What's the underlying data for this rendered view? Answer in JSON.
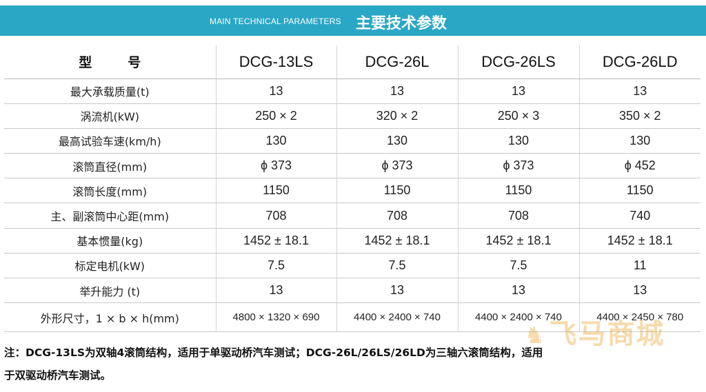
{
  "banner": {
    "subtitle": "MAIN TECHNICAL PARAMETERS",
    "title": "主要技术参数"
  },
  "table": {
    "header_label_left": "型",
    "header_label_right": "号",
    "models": [
      "DCG-13LS",
      "DCG-26L",
      "DCG-26LS",
      "DCG-26LD"
    ],
    "rows": [
      {
        "label": "最大承载质量(t)",
        "values": [
          "13",
          "13",
          "13",
          "13"
        ]
      },
      {
        "label": "涡流机(kW)",
        "values": [
          "250 × 2",
          "320 × 2",
          "250 × 3",
          "350 × 2"
        ]
      },
      {
        "label": "最高试验车速(km/h)",
        "values": [
          "130",
          "130",
          "130",
          "130"
        ]
      },
      {
        "label": "滚筒直径(mm)",
        "values": [
          "ϕ 373",
          "ϕ 373",
          "ϕ 373",
          "ϕ 452"
        ]
      },
      {
        "label": "滚筒长度(mm)",
        "values": [
          "1150",
          "1150",
          "1150",
          "1150"
        ]
      },
      {
        "label": "主、副滚筒中心距(mm)",
        "values": [
          "708",
          "708",
          "708",
          "740"
        ]
      },
      {
        "label": "基本惯量(kg)",
        "values": [
          "1452 ± 18.1",
          "1452 ± 18.1",
          "1452 ± 18.1",
          "1452 ± 18.1"
        ]
      },
      {
        "label": "标定电机(kW)",
        "values": [
          "7.5",
          "7.5",
          "7.5",
          "11"
        ]
      },
      {
        "label": "举升能力 (t)",
        "values": [
          "13",
          "13",
          "13",
          "13"
        ]
      },
      {
        "label": "外形尺寸，1 × b × h(mm)",
        "values": [
          "4800 × 1320 × 690",
          "4400 × 2400 × 740",
          "4400 × 2400 × 740",
          "4400 × 2450 × 780"
        ]
      }
    ]
  },
  "note": {
    "line1": "注：DCG-13LS为双轴4滚筒结构，适用于单驱动桥汽车测试；DCG-26L/26LS/26LD为三轴六滚筒结构，适用",
    "line2": "于双驱动桥汽车测试。"
  },
  "watermark": {
    "text": "飞马商城"
  }
}
